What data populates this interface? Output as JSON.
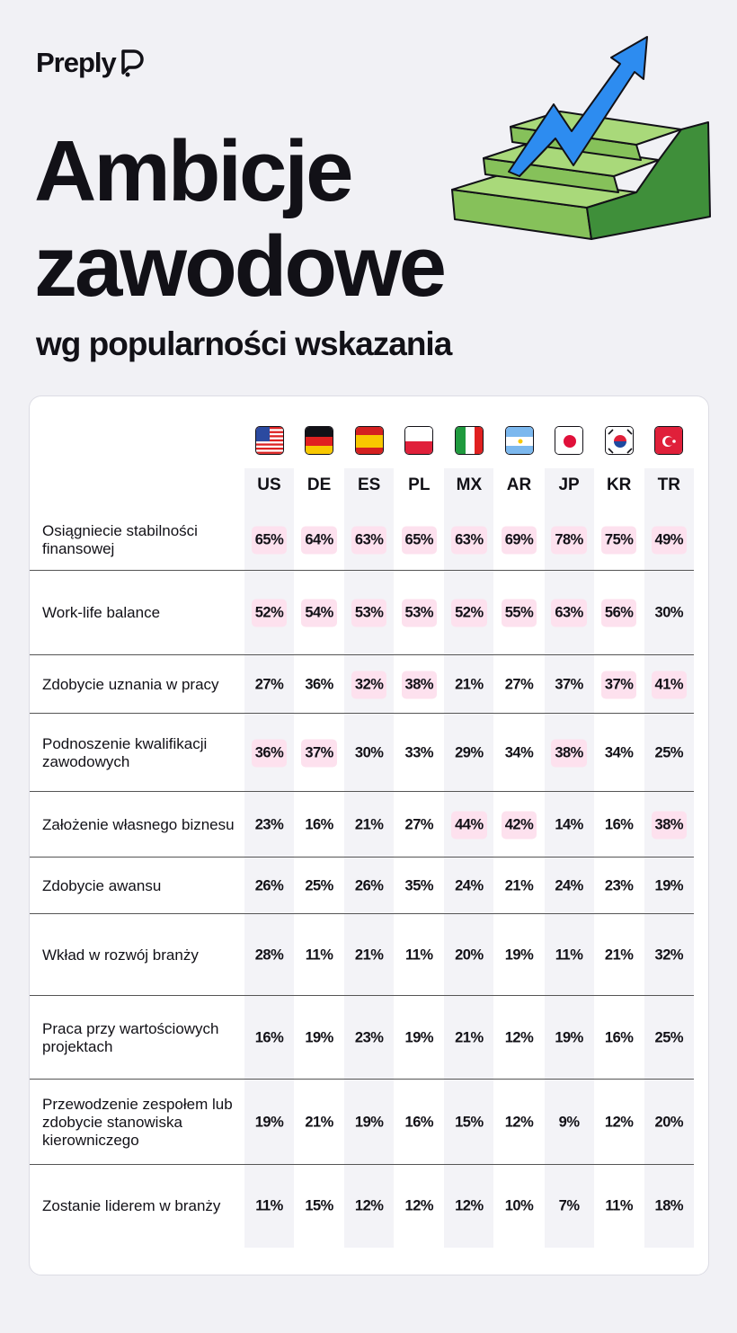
{
  "brand": "Preply",
  "title_line1": "Ambicje",
  "title_line2": "zawodowe",
  "subtitle": "wg popularności wskazania",
  "colors": {
    "highlight": "#fde1ee",
    "column_shade": "#f3f3f7",
    "background": "#f1f1f5"
  },
  "countries": [
    {
      "code": "US",
      "flag": "us-flag"
    },
    {
      "code": "DE",
      "flag": "de-flag"
    },
    {
      "code": "ES",
      "flag": "es-flag"
    },
    {
      "code": "PL",
      "flag": "pl-flag"
    },
    {
      "code": "MX",
      "flag": "it-style-flag"
    },
    {
      "code": "AR",
      "flag": "ar-flag"
    },
    {
      "code": "JP",
      "flag": "jp-flag"
    },
    {
      "code": "KR",
      "flag": "kr-flag"
    },
    {
      "code": "TR",
      "flag": "tr-flag"
    }
  ],
  "rows": [
    {
      "label": "Osiągniecie stabilności finansowej",
      "values": [
        "65%",
        "64%",
        "63%",
        "65%",
        "63%",
        "69%",
        "78%",
        "75%",
        "49%"
      ],
      "highlight": [
        1,
        1,
        1,
        1,
        1,
        1,
        1,
        1,
        1
      ]
    },
    {
      "label": "Work-life balance",
      "values": [
        "52%",
        "54%",
        "53%",
        "53%",
        "52%",
        "55%",
        "63%",
        "56%",
        "30%"
      ],
      "highlight": [
        1,
        1,
        1,
        1,
        1,
        1,
        1,
        1,
        0
      ]
    },
    {
      "label": "Zdobycie uznania w pracy",
      "values": [
        "27%",
        "36%",
        "32%",
        "38%",
        "21%",
        "27%",
        "37%",
        "37%",
        "41%"
      ],
      "highlight": [
        0,
        0,
        1,
        1,
        0,
        0,
        0,
        1,
        1
      ]
    },
    {
      "label": "Podnoszenie kwalifikacji zawodowych",
      "values": [
        "36%",
        "37%",
        "30%",
        "33%",
        "29%",
        "34%",
        "38%",
        "34%",
        "25%"
      ],
      "highlight": [
        1,
        1,
        0,
        0,
        0,
        0,
        1,
        0,
        0
      ]
    },
    {
      "label": "Założenie własnego biznesu",
      "values": [
        "23%",
        "16%",
        "21%",
        "27%",
        "44%",
        "42%",
        "14%",
        "16%",
        "38%"
      ],
      "highlight": [
        0,
        0,
        0,
        0,
        1,
        1,
        0,
        0,
        1
      ]
    },
    {
      "label": "Zdobycie awansu",
      "values": [
        "26%",
        "25%",
        "26%",
        "35%",
        "24%",
        "21%",
        "24%",
        "23%",
        "19%"
      ],
      "highlight": [
        0,
        0,
        0,
        0,
        0,
        0,
        0,
        0,
        0
      ]
    },
    {
      "label": "Wkład w rozwój branży",
      "values": [
        "28%",
        "11%",
        "21%",
        "11%",
        "20%",
        "19%",
        "11%",
        "21%",
        "32%"
      ],
      "highlight": [
        0,
        0,
        0,
        0,
        0,
        0,
        0,
        0,
        0
      ]
    },
    {
      "label": "Praca przy wartościowych projektach",
      "values": [
        "16%",
        "19%",
        "23%",
        "19%",
        "21%",
        "12%",
        "19%",
        "16%",
        "25%"
      ],
      "highlight": [
        0,
        0,
        0,
        0,
        0,
        0,
        0,
        0,
        0
      ]
    },
    {
      "label": "Przewodzenie zespołem lub zdobycie stanowiska kierowniczego",
      "values": [
        "19%",
        "21%",
        "19%",
        "16%",
        "15%",
        "12%",
        "9%",
        "12%",
        "20%"
      ],
      "highlight": [
        0,
        0,
        0,
        0,
        0,
        0,
        0,
        0,
        0
      ]
    },
    {
      "label": "Zostanie liderem w branży",
      "values": [
        "11%",
        "15%",
        "12%",
        "12%",
        "12%",
        "10%",
        "7%",
        "11%",
        "18%"
      ],
      "highlight": [
        0,
        0,
        0,
        0,
        0,
        0,
        0,
        0,
        0
      ]
    }
  ]
}
